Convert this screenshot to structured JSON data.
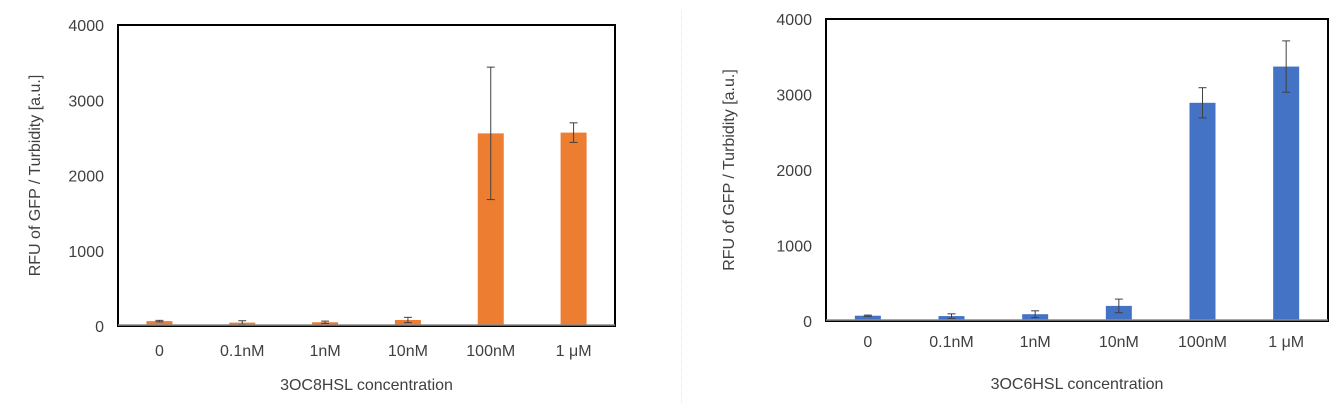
{
  "chart_data": [
    {
      "type": "bar",
      "categories": [
        "0",
        "0.1nM",
        "1nM",
        "10nM",
        "100nM",
        "1 μM"
      ],
      "values": [
        65,
        45,
        50,
        80,
        2560,
        2570
      ],
      "errors": [
        10,
        25,
        15,
        35,
        880,
        130
      ],
      "title": "",
      "xlabel": "3OC8HSL concentration",
      "ylabel": "RFU of GFP / Turbidity [a.u.]",
      "ylim": [
        0,
        4000
      ],
      "yticks": [
        0,
        1000,
        2000,
        3000,
        4000
      ],
      "grid": false,
      "bar_color": "#ED7D31"
    },
    {
      "type": "bar",
      "categories": [
        "0",
        "0.1nM",
        "1nM",
        "10nM",
        "100nM",
        "1 μM"
      ],
      "values": [
        70,
        65,
        90,
        200,
        2890,
        3370
      ],
      "errors": [
        8,
        30,
        45,
        90,
        200,
        340
      ],
      "title": "",
      "xlabel": "3OC6HSL concentration",
      "ylabel": "RFU of GFP / Turbidity [a.u.]",
      "ylim": [
        0,
        4000
      ],
      "yticks": [
        0,
        1000,
        2000,
        3000,
        4000
      ],
      "grid": false,
      "bar_color": "#4472C4"
    }
  ]
}
